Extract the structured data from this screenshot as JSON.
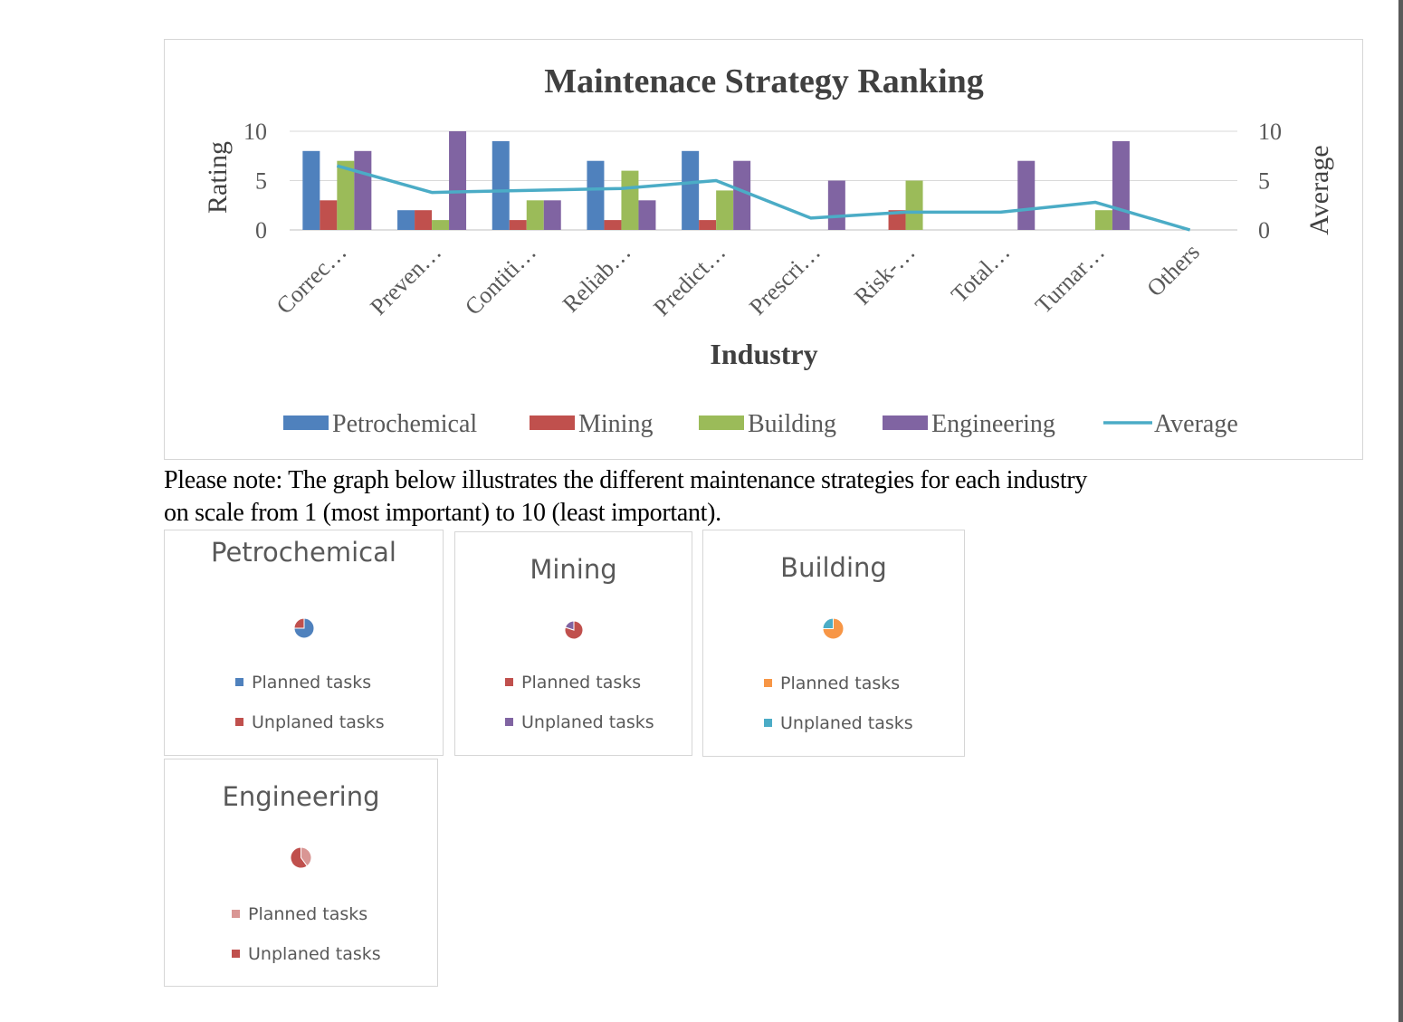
{
  "main_chart": {
    "title": "Maintenace Strategy Ranking",
    "xlabel": "Industry",
    "ylabel_left": "Rating",
    "ylabel_right": "Average",
    "ylim": [
      0,
      10
    ],
    "yticks": [
      "0",
      "5",
      "10"
    ]
  },
  "note": {
    "line1": "Please note: The graph below illustrates the different maintenance strategies for each industry",
    "line2": "on scale from 1 (most important) to 10 (least important)."
  },
  "colors": {
    "petrochemical": "#4f81bd",
    "mining": "#c0504d",
    "building": "#9bbb59",
    "engineering": "#8064a2",
    "average": "#4bacc6"
  },
  "chart_data": [
    {
      "type": "bar",
      "title": "Maintenace Strategy Ranking",
      "xlabel": "Industry",
      "ylabel": "Rating",
      "y2label": "Average",
      "ylim": [
        0,
        10
      ],
      "y2lim": [
        0,
        10
      ],
      "grid": true,
      "legend": "bottom",
      "categories": [
        "Correc…",
        "Preven…",
        "Contiti…",
        "Reliab…",
        "Predict…",
        "Prescri…",
        "Risk-…",
        "Total…",
        "Turnar…",
        "Others"
      ],
      "series": [
        {
          "name": "Petrochemical",
          "type": "bar",
          "color": "#4f81bd",
          "values": [
            8,
            2,
            9,
            7,
            8,
            0,
            0,
            0,
            0,
            0
          ]
        },
        {
          "name": "Mining",
          "type": "bar",
          "color": "#c0504d",
          "values": [
            3,
            2,
            1,
            1,
            1,
            0,
            2,
            0,
            0,
            0
          ]
        },
        {
          "name": "Building",
          "type": "bar",
          "color": "#9bbb59",
          "values": [
            7,
            1,
            3,
            6,
            4,
            0,
            5,
            0,
            2,
            0
          ]
        },
        {
          "name": "Engineering",
          "type": "bar",
          "color": "#8064a2",
          "values": [
            8,
            10,
            3,
            3,
            7,
            5,
            0,
            7,
            9,
            0
          ]
        },
        {
          "name": "Average",
          "type": "line",
          "color": "#4bacc6",
          "values": [
            6.5,
            3.8,
            4.0,
            4.2,
            5.0,
            1.2,
            1.8,
            1.8,
            2.8,
            0
          ]
        }
      ]
    },
    {
      "type": "pie",
      "title": "Petrochemical",
      "labels": [
        "Planned tasks",
        "Unplaned tasks"
      ],
      "values": [
        75,
        25
      ],
      "colors": [
        "#4f81bd",
        "#c0504d"
      ]
    },
    {
      "type": "pie",
      "title": "Mining",
      "labels": [
        "Planned tasks",
        "Unplaned tasks"
      ],
      "values": [
        80,
        20
      ],
      "colors": [
        "#c0504d",
        "#8064a2"
      ]
    },
    {
      "type": "pie",
      "title": "Building",
      "labels": [
        "Planned tasks",
        "Unplaned tasks"
      ],
      "values": [
        75,
        25
      ],
      "colors": [
        "#f79646",
        "#4bacc6"
      ]
    },
    {
      "type": "pie",
      "title": "Engineering",
      "labels": [
        "Planned tasks",
        "Unplaned tasks"
      ],
      "values": [
        40,
        60
      ],
      "colors": [
        "#d99694",
        "#c0504d"
      ]
    }
  ]
}
